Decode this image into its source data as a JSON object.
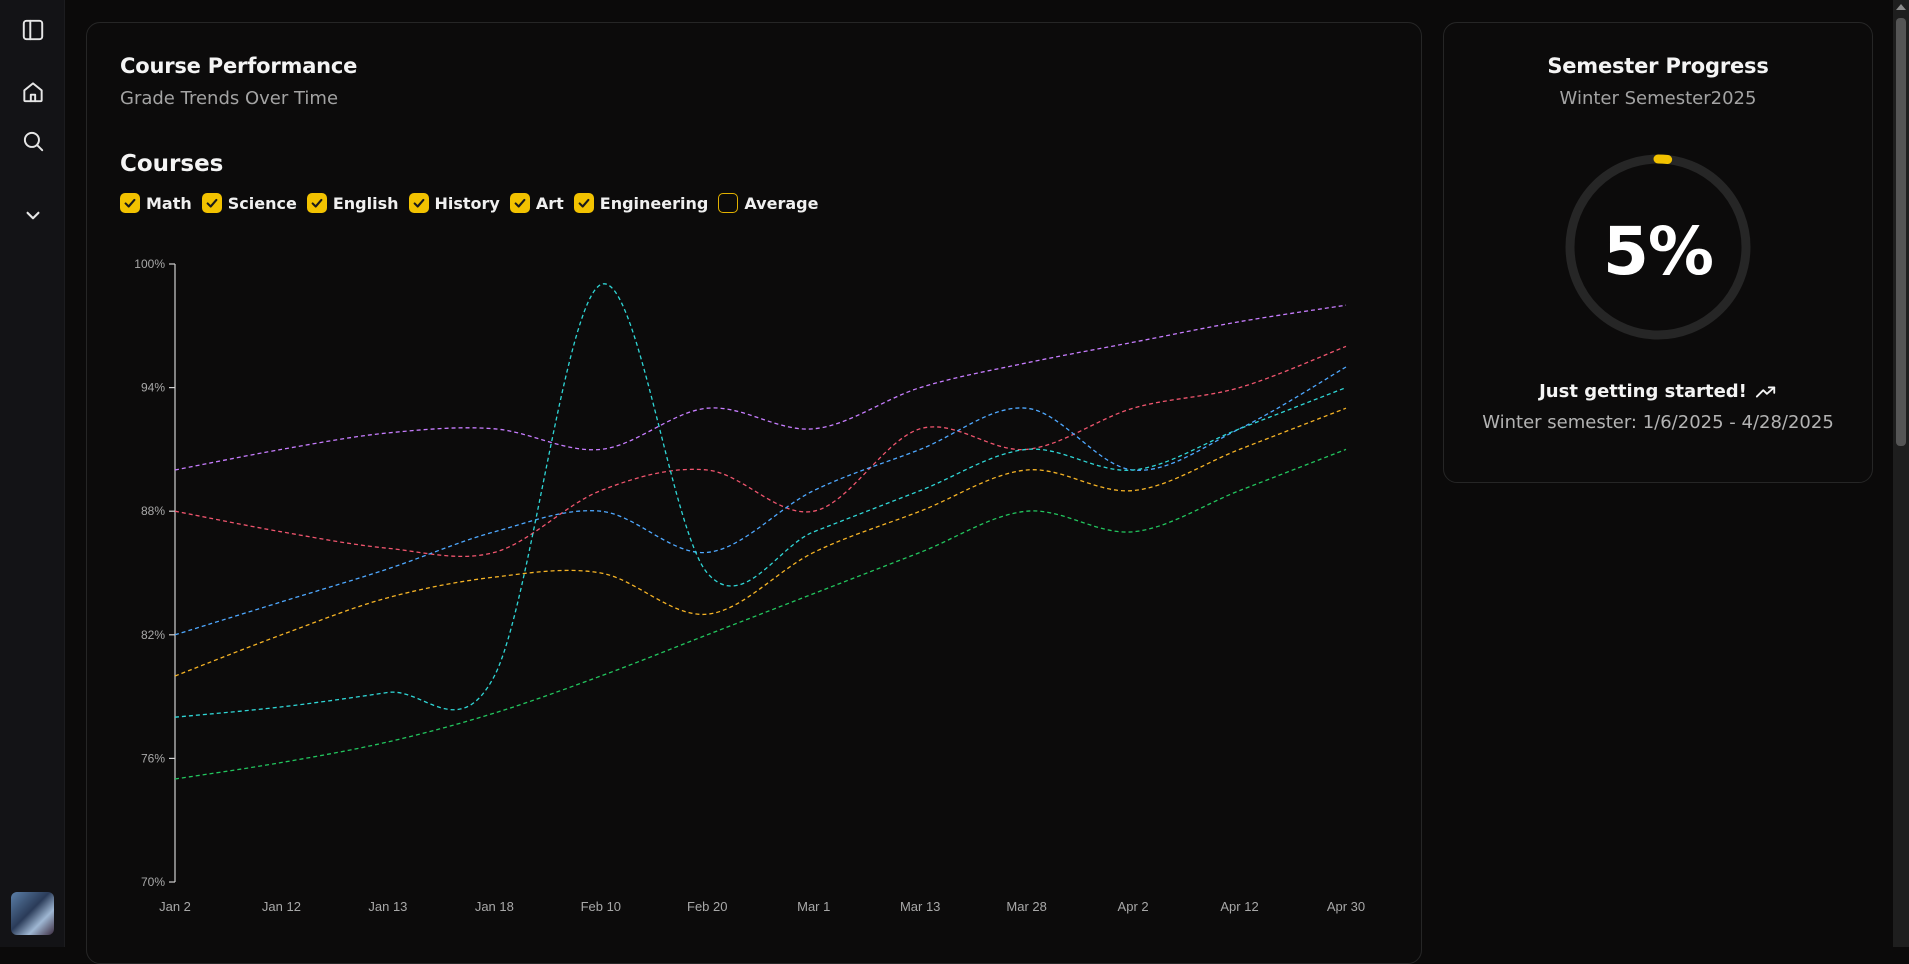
{
  "sidebar": {
    "items": [
      {
        "icon": "sidebar-toggle-icon"
      },
      {
        "icon": "home-icon"
      },
      {
        "icon": "search-icon"
      },
      {
        "icon": "chevron-down-icon"
      }
    ]
  },
  "performance": {
    "title": "Course Performance",
    "subtitle": "Grade Trends Over Time",
    "courses_heading": "Courses",
    "legend": [
      {
        "label": "Math",
        "checked": true
      },
      {
        "label": "Science",
        "checked": true
      },
      {
        "label": "English",
        "checked": true
      },
      {
        "label": "History",
        "checked": true
      },
      {
        "label": "Art",
        "checked": true
      },
      {
        "label": "Engineering",
        "checked": true
      },
      {
        "label": "Average",
        "checked": false
      }
    ]
  },
  "chart_data": {
    "type": "line",
    "x": [
      "Jan 2",
      "Jan 12",
      "Jan 13",
      "Jan 18",
      "Feb 10",
      "Feb 20",
      "Mar 1",
      "Mar 13",
      "Mar 28",
      "Apr 2",
      "Apr 12",
      "Apr 30"
    ],
    "yticks": [
      "70%",
      "76%",
      "82%",
      "88%",
      "94%",
      "100%"
    ],
    "ylim": [
      70,
      100
    ],
    "series": [
      {
        "color": "#c77dff",
        "values": [
          90,
          91,
          91.8,
          92,
          91,
          93,
          92,
          94,
          95.2,
          96.2,
          97.2,
          98
        ]
      },
      {
        "color": "#f0556e",
        "values": [
          88,
          87,
          86.2,
          86,
          89,
          90,
          88,
          92,
          91,
          93,
          94,
          96
        ]
      },
      {
        "color": "#4ea8ff",
        "values": [
          82,
          83.6,
          85.2,
          87,
          88,
          86,
          89,
          91,
          93,
          90,
          92,
          95
        ]
      },
      {
        "color": "#2fd6d6",
        "values": [
          78,
          78.5,
          79.2,
          80,
          99,
          85,
          87,
          89,
          91,
          90,
          92,
          94
        ]
      },
      {
        "color": "#f5b325",
        "values": [
          80,
          82,
          83.8,
          84.8,
          85,
          83,
          86,
          88,
          90,
          89,
          91,
          93
        ]
      },
      {
        "color": "#22c55e",
        "values": [
          75,
          75.8,
          76.8,
          78.2,
          80,
          82,
          84,
          86,
          88,
          87,
          89,
          91
        ]
      }
    ]
  },
  "progress": {
    "title": "Semester Progress",
    "subtitle": "Winter Semester2025",
    "percent_value": 5,
    "percent_label": "5%",
    "status": "Just getting started!",
    "status_icon": "trending-up-icon",
    "dates": "Winter semester: 1/6/2025 - 4/28/2025",
    "accent_color": "#f2c200",
    "track_color": "#262626"
  }
}
